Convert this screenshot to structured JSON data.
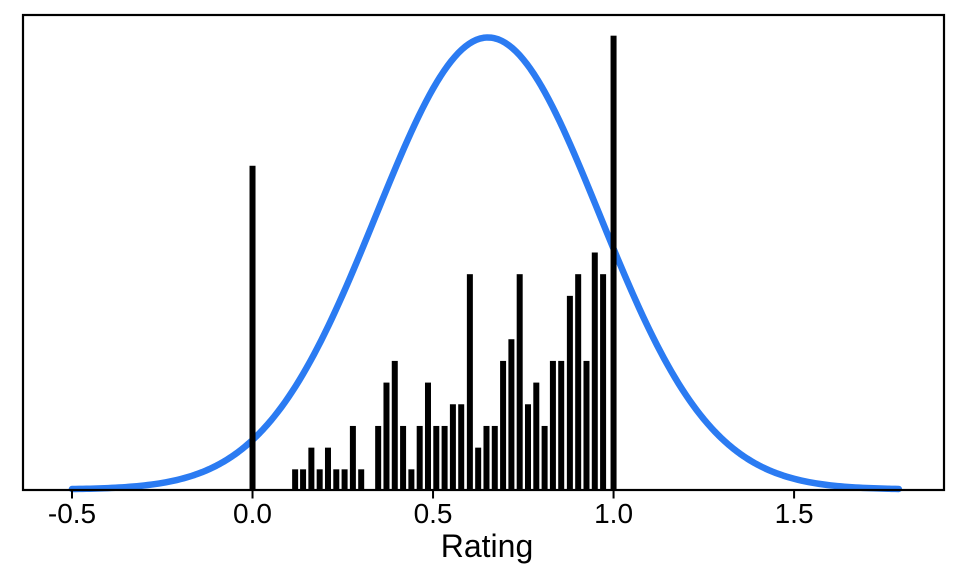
{
  "chart_data": {
    "type": "bar",
    "subtype": "histogram_with_density_curve",
    "title": "",
    "xlabel": "Rating",
    "ylabel": "",
    "grid": false,
    "legend": null,
    "x_ticks": [
      {
        "value": -0.5,
        "label": "-0.5"
      },
      {
        "value": 0.0,
        "label": "0.0"
      },
      {
        "value": 0.5,
        "label": "0.5"
      },
      {
        "value": 1.0,
        "label": "1.0"
      },
      {
        "value": 1.5,
        "label": "1.5"
      }
    ],
    "xlim": [
      -0.6385,
      1.918
    ],
    "ylim": [
      0,
      22
    ],
    "bars": [
      [
        0.0,
        15
      ],
      [
        0.118,
        1
      ],
      [
        0.14,
        1
      ],
      [
        0.163,
        2
      ],
      [
        0.186,
        1
      ],
      [
        0.209,
        2
      ],
      [
        0.232,
        1
      ],
      [
        0.255,
        1
      ],
      [
        0.278,
        3
      ],
      [
        0.301,
        1
      ],
      [
        0.348,
        3
      ],
      [
        0.371,
        5
      ],
      [
        0.394,
        6
      ],
      [
        0.417,
        3
      ],
      [
        0.44,
        1
      ],
      [
        0.463,
        3
      ],
      [
        0.486,
        5
      ],
      [
        0.509,
        3
      ],
      [
        0.532,
        3
      ],
      [
        0.555,
        4
      ],
      [
        0.578,
        4
      ],
      [
        0.602,
        10
      ],
      [
        0.625,
        2
      ],
      [
        0.648,
        3
      ],
      [
        0.671,
        3
      ],
      [
        0.694,
        6
      ],
      [
        0.717,
        7
      ],
      [
        0.74,
        10
      ],
      [
        0.763,
        4
      ],
      [
        0.786,
        5
      ],
      [
        0.809,
        3
      ],
      [
        0.832,
        6
      ],
      [
        0.855,
        6
      ],
      [
        0.879,
        9
      ],
      [
        0.902,
        10
      ],
      [
        0.925,
        6
      ],
      [
        0.948,
        11
      ],
      [
        0.971,
        10
      ],
      [
        1.0,
        21
      ]
    ],
    "density_curve": {
      "shape": "gaussian",
      "mean": 0.652,
      "sigma": 0.31,
      "peak_height_counts": 20.85,
      "x_range": [
        -0.5,
        1.79
      ]
    },
    "colors": {
      "bar": "#000000",
      "curve": "#2B7BF2",
      "frame": "#000000",
      "background": "#ffffff"
    }
  }
}
